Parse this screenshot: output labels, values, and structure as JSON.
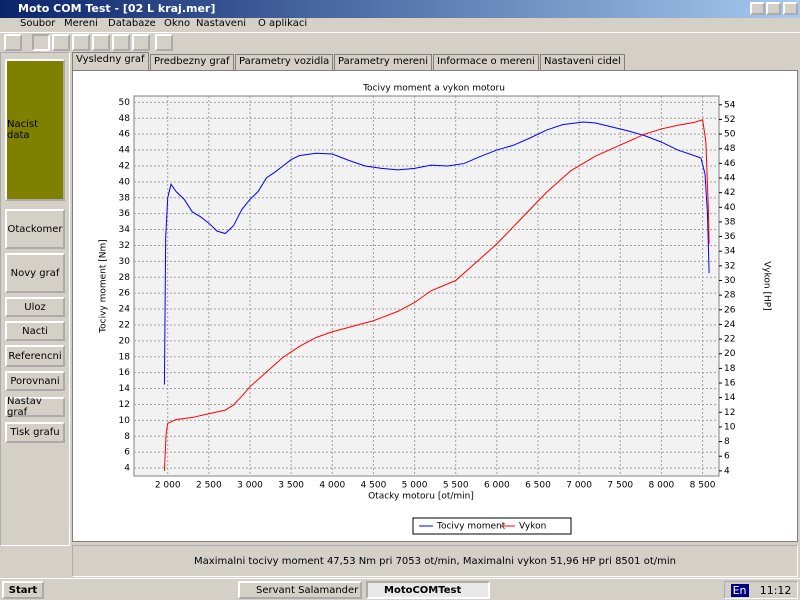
{
  "window": {
    "title": "Moto COM Test - [02 L kraj.mer]"
  },
  "menu": [
    "Soubor",
    "Mereni",
    "Databaze",
    "Okno",
    "Nastaveni",
    "O aplikaci"
  ],
  "buttons": [
    "Nacist data",
    "Otackomer",
    "Novy graf",
    "Uloz",
    "Nacti",
    "Referencni",
    "Porovnani",
    "Nastav graf",
    "Tisk grafu"
  ],
  "tabs": [
    "Vysledny graf",
    "Predbezny graf",
    "Parametry vozidla",
    "Parametry mereni",
    "Informace o mereni",
    "Nastaveni cidel"
  ],
  "chart_data": {
    "type": "line",
    "title": "Tocivy moment a vykon motoru",
    "x_label": "Otacky motoru [ot/min]",
    "y_label": "Tocivy moment [Nm]",
    "y2_label": "Vykon [HP]",
    "xlim": [
      1590,
      8700
    ],
    "xticks": [
      {
        "value": 2000,
        "label": "2 000"
      },
      {
        "value": 2500,
        "label": "2 500"
      },
      {
        "value": 3000,
        "label": "3 000"
      },
      {
        "value": 3500,
        "label": "3 500"
      },
      {
        "value": 4000,
        "label": "4 000"
      },
      {
        "value": 4500,
        "label": "4 500"
      },
      {
        "value": 5000,
        "label": "5 000"
      },
      {
        "value": 5500,
        "label": "5 500"
      },
      {
        "value": 6000,
        "label": "6 000"
      },
      {
        "value": 6500,
        "label": "6 500"
      },
      {
        "value": 7000,
        "label": "7 000"
      },
      {
        "value": 7500,
        "label": "7 500"
      },
      {
        "value": 8000,
        "label": "8 000"
      },
      {
        "value": 8500,
        "label": "8 500"
      }
    ],
    "ylim": [
      3,
      50.8
    ],
    "yticks": [
      4,
      6,
      8,
      10,
      12,
      14,
      16,
      18,
      20,
      22,
      24,
      26,
      28,
      30,
      32,
      34,
      36,
      38,
      40,
      42,
      44,
      46,
      48,
      50
    ],
    "y2lim": [
      3.3,
      55.2
    ],
    "y2ticks": [
      4,
      6,
      8,
      10,
      12,
      14,
      16,
      18,
      20,
      22,
      24,
      26,
      28,
      30,
      32,
      34,
      36,
      38,
      40,
      42,
      44,
      46,
      48,
      50,
      52,
      54
    ],
    "grid": true,
    "series": [
      {
        "name": "Tocivy moment",
        "color": "#0000ff",
        "x": [
          1960,
          1975,
          2000,
          2040,
          2100,
          2200,
          2300,
          2400,
          2500,
          2600,
          2700,
          2800,
          2900,
          3000,
          3100,
          3200,
          3300,
          3400,
          3500,
          3600,
          3800,
          4000,
          4200,
          4400,
          4600,
          4800,
          5000,
          5200,
          5400,
          5600,
          5800,
          6000,
          6200,
          6400,
          6600,
          6800,
          7053,
          7200,
          7400,
          7600,
          7800,
          8000,
          8200,
          8400,
          8480,
          8530,
          8560,
          8580
        ],
        "values": [
          14.5,
          33,
          38,
          39.7,
          38.8,
          37.8,
          36.2,
          35.6,
          34.8,
          33.8,
          33.5,
          34.5,
          36.5,
          37.8,
          38.8,
          40.5,
          41.2,
          42,
          42.8,
          43.3,
          43.6,
          43.5,
          42.7,
          42,
          41.7,
          41.5,
          41.7,
          42.1,
          42,
          42.3,
          43.2,
          44,
          44.6,
          45.5,
          46.5,
          47.2,
          47.53,
          47.4,
          46.9,
          46.4,
          45.8,
          45,
          44,
          43.3,
          43,
          41,
          36,
          28.5
        ]
      },
      {
        "name": "Vykon",
        "color": "#ff0000",
        "axis": "y2",
        "x": [
          1960,
          1980,
          2000,
          2100,
          2300,
          2500,
          2700,
          2800,
          2900,
          3000,
          3200,
          3400,
          3600,
          3800,
          4000,
          4200,
          4500,
          4800,
          5000,
          5200,
          5500,
          5700,
          6000,
          6300,
          6600,
          6900,
          7200,
          7500,
          7800,
          8000,
          8200,
          8400,
          8501,
          8540,
          8570,
          8580
        ],
        "values": [
          4,
          9,
          10.5,
          11,
          11.3,
          11.8,
          12.3,
          13,
          14.2,
          15.5,
          17.5,
          19.5,
          21,
          22.2,
          23,
          23.6,
          24.5,
          25.8,
          27,
          28.6,
          30,
          32,
          35,
          38.5,
          42,
          45,
          47,
          48.5,
          50,
          50.7,
          51.2,
          51.6,
          51.96,
          49,
          40,
          35
        ]
      }
    ]
  },
  "status": "Maximalni tocivy moment 47,53 Nm pri 7053 ot/min,  Maximalni vykon 51,96 HP pri 8501 ot/min",
  "taskbar": {
    "start": "Start",
    "tasks": [
      "Servant Salamander",
      "MotoCOMTest"
    ],
    "lang": "En",
    "time": "11:12"
  }
}
